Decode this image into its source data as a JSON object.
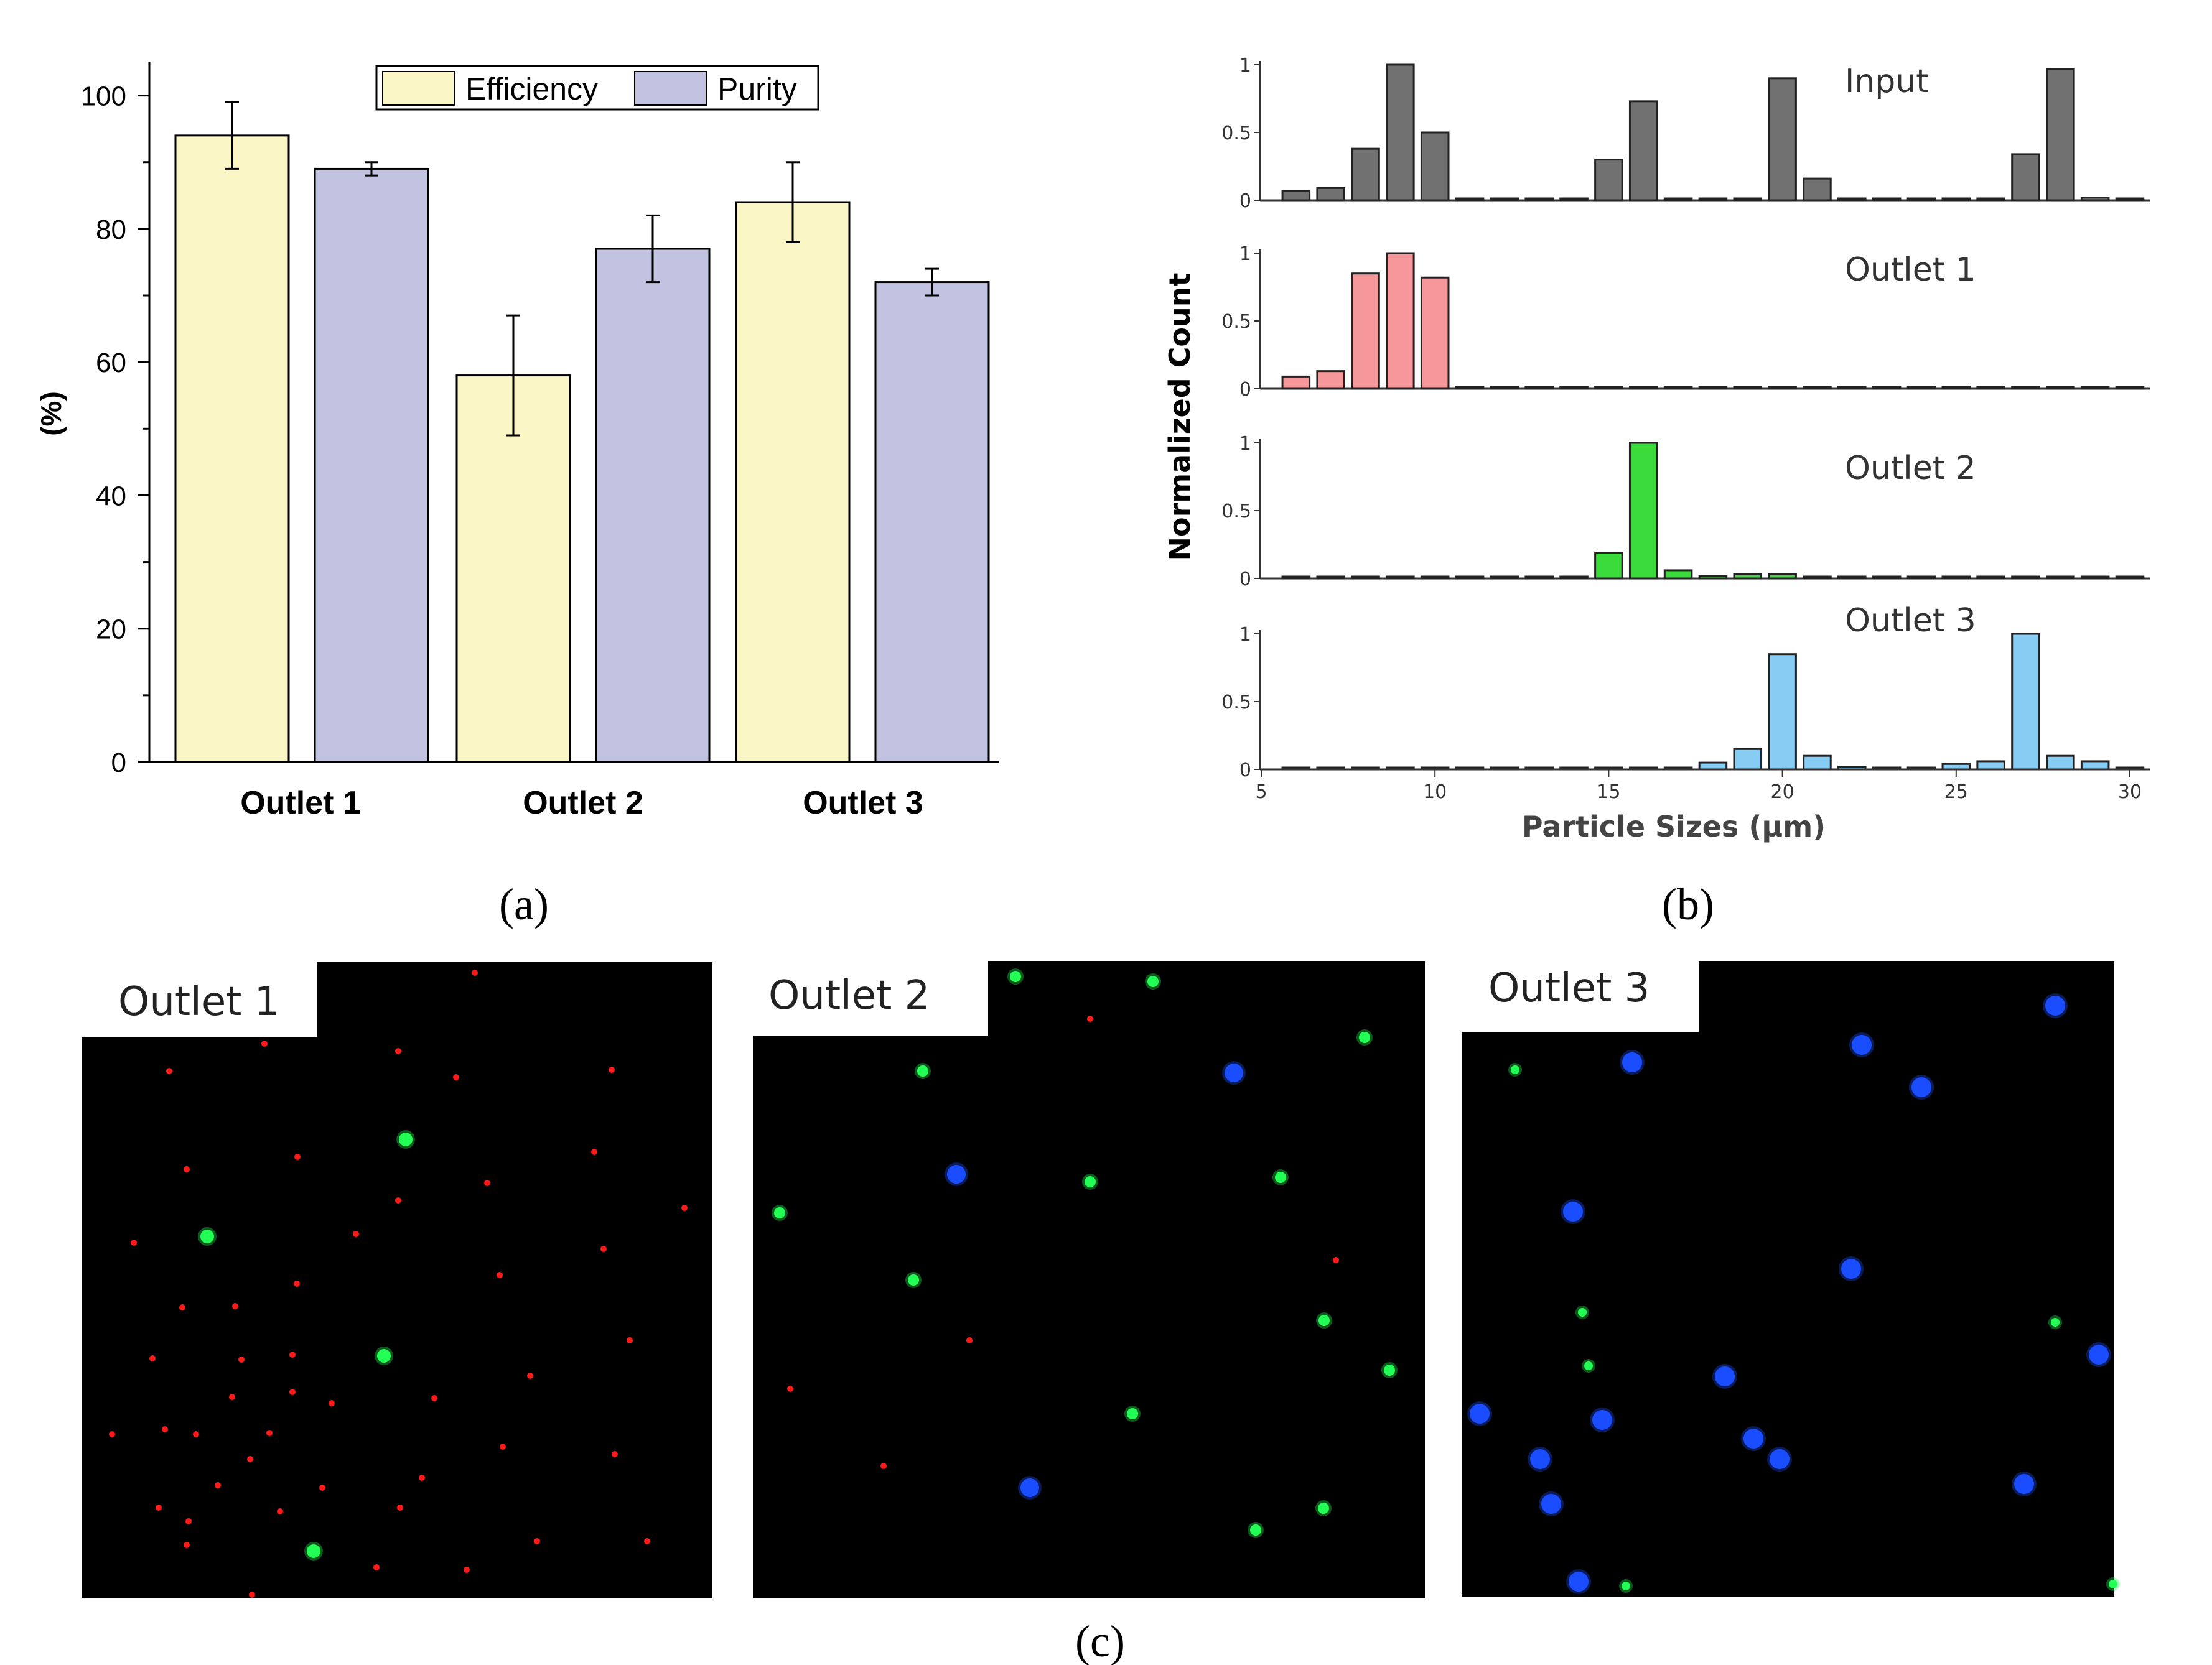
{
  "figure_labels": {
    "a": "(a)",
    "b": "(b)",
    "c": "(c)"
  },
  "colors": {
    "efficiency": "#fbf6c5",
    "purity": "#c1c3e1",
    "input": "#717171",
    "outlet1": "#f5979b",
    "outlet2": "#3cdb3c",
    "outlet3": "#86ccf3",
    "dot_red": "#ff1a1a",
    "dot_green": "#22ff55",
    "dot_blue": "#1a4dff"
  },
  "chart_data": [
    {
      "id": "a",
      "type": "bar",
      "categories": [
        "Outlet 1",
        "Outlet 2",
        "Outlet 3"
      ],
      "series": [
        {
          "name": "Efficiency",
          "values": [
            94,
            58,
            84
          ],
          "errors": [
            5,
            9,
            6
          ]
        },
        {
          "name": "Purity",
          "values": [
            89,
            77,
            72
          ],
          "errors": [
            1,
            5,
            2
          ]
        }
      ],
      "ylabel": "(%)",
      "ylim": [
        0,
        105
      ],
      "yticks": [
        0,
        20,
        40,
        60,
        80,
        100
      ],
      "legend": "top-center"
    },
    {
      "id": "b",
      "type": "bar",
      "xlabel": "Particle Sizes (μm)",
      "ylabel": "Normalized Count",
      "xlim": [
        5,
        30.5
      ],
      "xticks": [
        5,
        10,
        15,
        20,
        25,
        30
      ],
      "yticks": [
        "0",
        "0.5",
        "1"
      ],
      "bins": [
        6,
        7,
        8,
        9,
        10,
        11,
        12,
        13,
        14,
        15,
        16,
        17,
        18,
        19,
        20,
        21,
        22,
        23,
        24,
        25,
        26,
        27,
        28,
        29,
        30
      ],
      "series": [
        {
          "name": "Input",
          "values": [
            0.07,
            0.09,
            0.38,
            1.0,
            0.5,
            0,
            0,
            0,
            0,
            0.3,
            0.73,
            0,
            0,
            0,
            0.9,
            0.16,
            0,
            0,
            0,
            0,
            0,
            0.34,
            0.97,
            0.02,
            0
          ]
        },
        {
          "name": "Outlet 1",
          "values": [
            0.09,
            0.13,
            0.85,
            1.0,
            0.82,
            0,
            0,
            0,
            0,
            0,
            0,
            0,
            0,
            0,
            0,
            0,
            0,
            0,
            0,
            0,
            0,
            0,
            0,
            0,
            0
          ]
        },
        {
          "name": "Outlet 2",
          "values": [
            0,
            0,
            0,
            0,
            0,
            0,
            0,
            0,
            0,
            0.19,
            1.0,
            0.06,
            0.02,
            0.03,
            0.03,
            0,
            0,
            0,
            0,
            0,
            0,
            0,
            0,
            0,
            0
          ]
        },
        {
          "name": "Outlet 3",
          "values": [
            0,
            0,
            0,
            0,
            0,
            0,
            0,
            0,
            0,
            0,
            0.01,
            0.01,
            0.05,
            0.15,
            0.85,
            0.1,
            0.02,
            0,
            0,
            0.04,
            0.06,
            1.0,
            0.1,
            0.06,
            0
          ]
        }
      ]
    }
  ],
  "micrographs": [
    {
      "title": "Outlet 1"
    },
    {
      "title": "Outlet 2"
    },
    {
      "title": "Outlet 3"
    }
  ]
}
